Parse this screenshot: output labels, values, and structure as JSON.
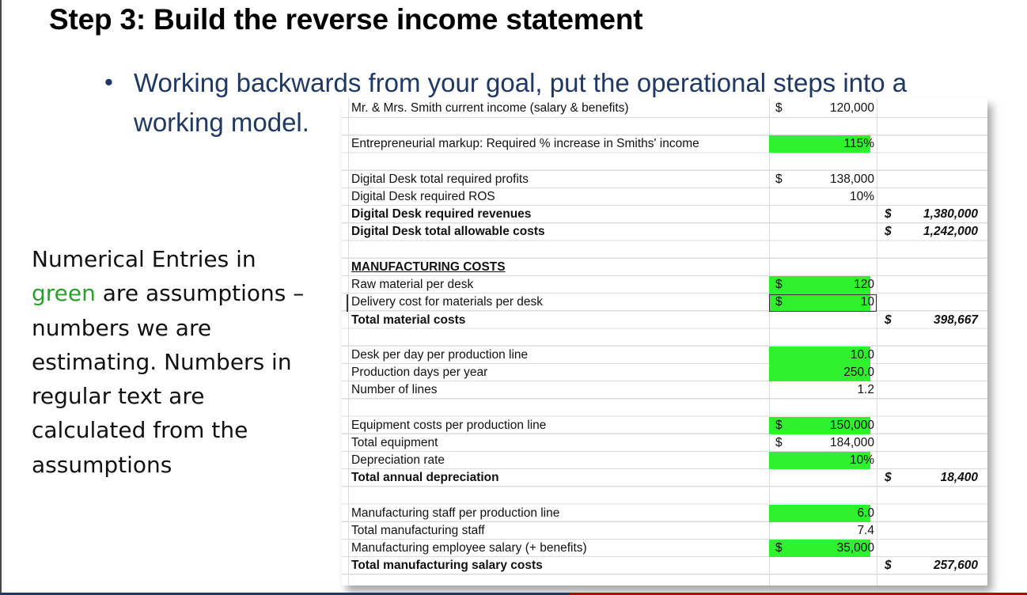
{
  "slide": {
    "title": "Step 3: Build the reverse income statement",
    "bullet_symbol": "•",
    "bullet_line1": "Working backwards from your goal, put the operational steps into a",
    "bullet_line2": "working model.",
    "note_part1": "Numerical Entries in ",
    "note_green": "green",
    "note_part2": " are assumptions – numbers we are estimating. Numbers in regular text are calculated from the assumptions",
    "green_color": "#2ef22e"
  },
  "sheet": {
    "rows": [
      {
        "label": "Mr. & Mrs. Smith current income (salary & benefits)",
        "d1": "$",
        "v1": "120,000",
        "d2": "",
        "v2": "",
        "green": false,
        "bold": false
      },
      {
        "label": "Entrepreneurial markup: Required % increase in Smiths' income",
        "d1": "",
        "v1": "115%",
        "d2": "",
        "v2": "",
        "green": true,
        "bold": false
      },
      {
        "label": "Digital Desk total required profits",
        "d1": "$",
        "v1": "138,000",
        "d2": "",
        "v2": "",
        "green": false,
        "bold": false
      },
      {
        "label": "Digital Desk required ROS",
        "d1": "",
        "v1": "10%",
        "d2": "",
        "v2": "",
        "green": false,
        "bold": false
      },
      {
        "label": "Digital Desk required revenues",
        "d1": "",
        "v1": "",
        "d2": "$",
        "v2": "1,380,000",
        "green": false,
        "bold": true
      },
      {
        "label": "Digital Desk total allowable costs",
        "d1": "",
        "v1": "",
        "d2": "$",
        "v2": "1,242,000",
        "green": false,
        "bold": true
      },
      {
        "label": "MANUFACTURING COSTS",
        "d1": "",
        "v1": "",
        "d2": "",
        "v2": "",
        "green": false,
        "bold": true,
        "underline": true
      },
      {
        "label": "Raw material per desk",
        "d1": "$",
        "v1": "120",
        "d2": "",
        "v2": "",
        "green": true,
        "bold": false
      },
      {
        "label": "Delivery cost for materials per desk",
        "d1": "$",
        "v1": "10",
        "d2": "",
        "v2": "",
        "green": true,
        "bold": false
      },
      {
        "label": "Total material costs",
        "d1": "",
        "v1": "",
        "d2": "$",
        "v2": "398,667",
        "green": false,
        "bold": true
      },
      {
        "label": "Desk per day per production line",
        "d1": "",
        "v1": "10.0",
        "d2": "",
        "v2": "",
        "green": true,
        "bold": false
      },
      {
        "label": "Production days per year",
        "d1": "",
        "v1": "250.0",
        "d2": "",
        "v2": "",
        "green": true,
        "bold": false
      },
      {
        "label": "Number of lines",
        "d1": "",
        "v1": "1.2",
        "d2": "",
        "v2": "",
        "green": false,
        "bold": false
      },
      {
        "label": "Equipment costs per production line",
        "d1": "$",
        "v1": "150,000",
        "d2": "",
        "v2": "",
        "green": true,
        "bold": false
      },
      {
        "label": "Total equipment",
        "d1": "$",
        "v1": "184,000",
        "d2": "",
        "v2": "",
        "green": false,
        "bold": false
      },
      {
        "label": "Depreciation rate",
        "d1": "",
        "v1": "10%",
        "d2": "",
        "v2": "",
        "green": true,
        "bold": false
      },
      {
        "label": "Total annual depreciation",
        "d1": "",
        "v1": "",
        "d2": "$",
        "v2": "18,400",
        "green": false,
        "bold": true
      },
      {
        "label": "Manufacturing staff per production line",
        "d1": "",
        "v1": "6.0",
        "d2": "",
        "v2": "",
        "green": true,
        "bold": false
      },
      {
        "label": "Total manufacturing staff",
        "d1": "",
        "v1": "7.4",
        "d2": "",
        "v2": "",
        "green": false,
        "bold": false
      },
      {
        "label": "Manufacturing employee salary (+ benefits)",
        "d1": "$",
        "v1": "35,000",
        "d2": "",
        "v2": "",
        "green": true,
        "bold": false
      },
      {
        "label": "Total manufacturing salary costs",
        "d1": "",
        "v1": "",
        "d2": "$",
        "v2": "257,600",
        "green": false,
        "bold": true
      }
    ]
  }
}
